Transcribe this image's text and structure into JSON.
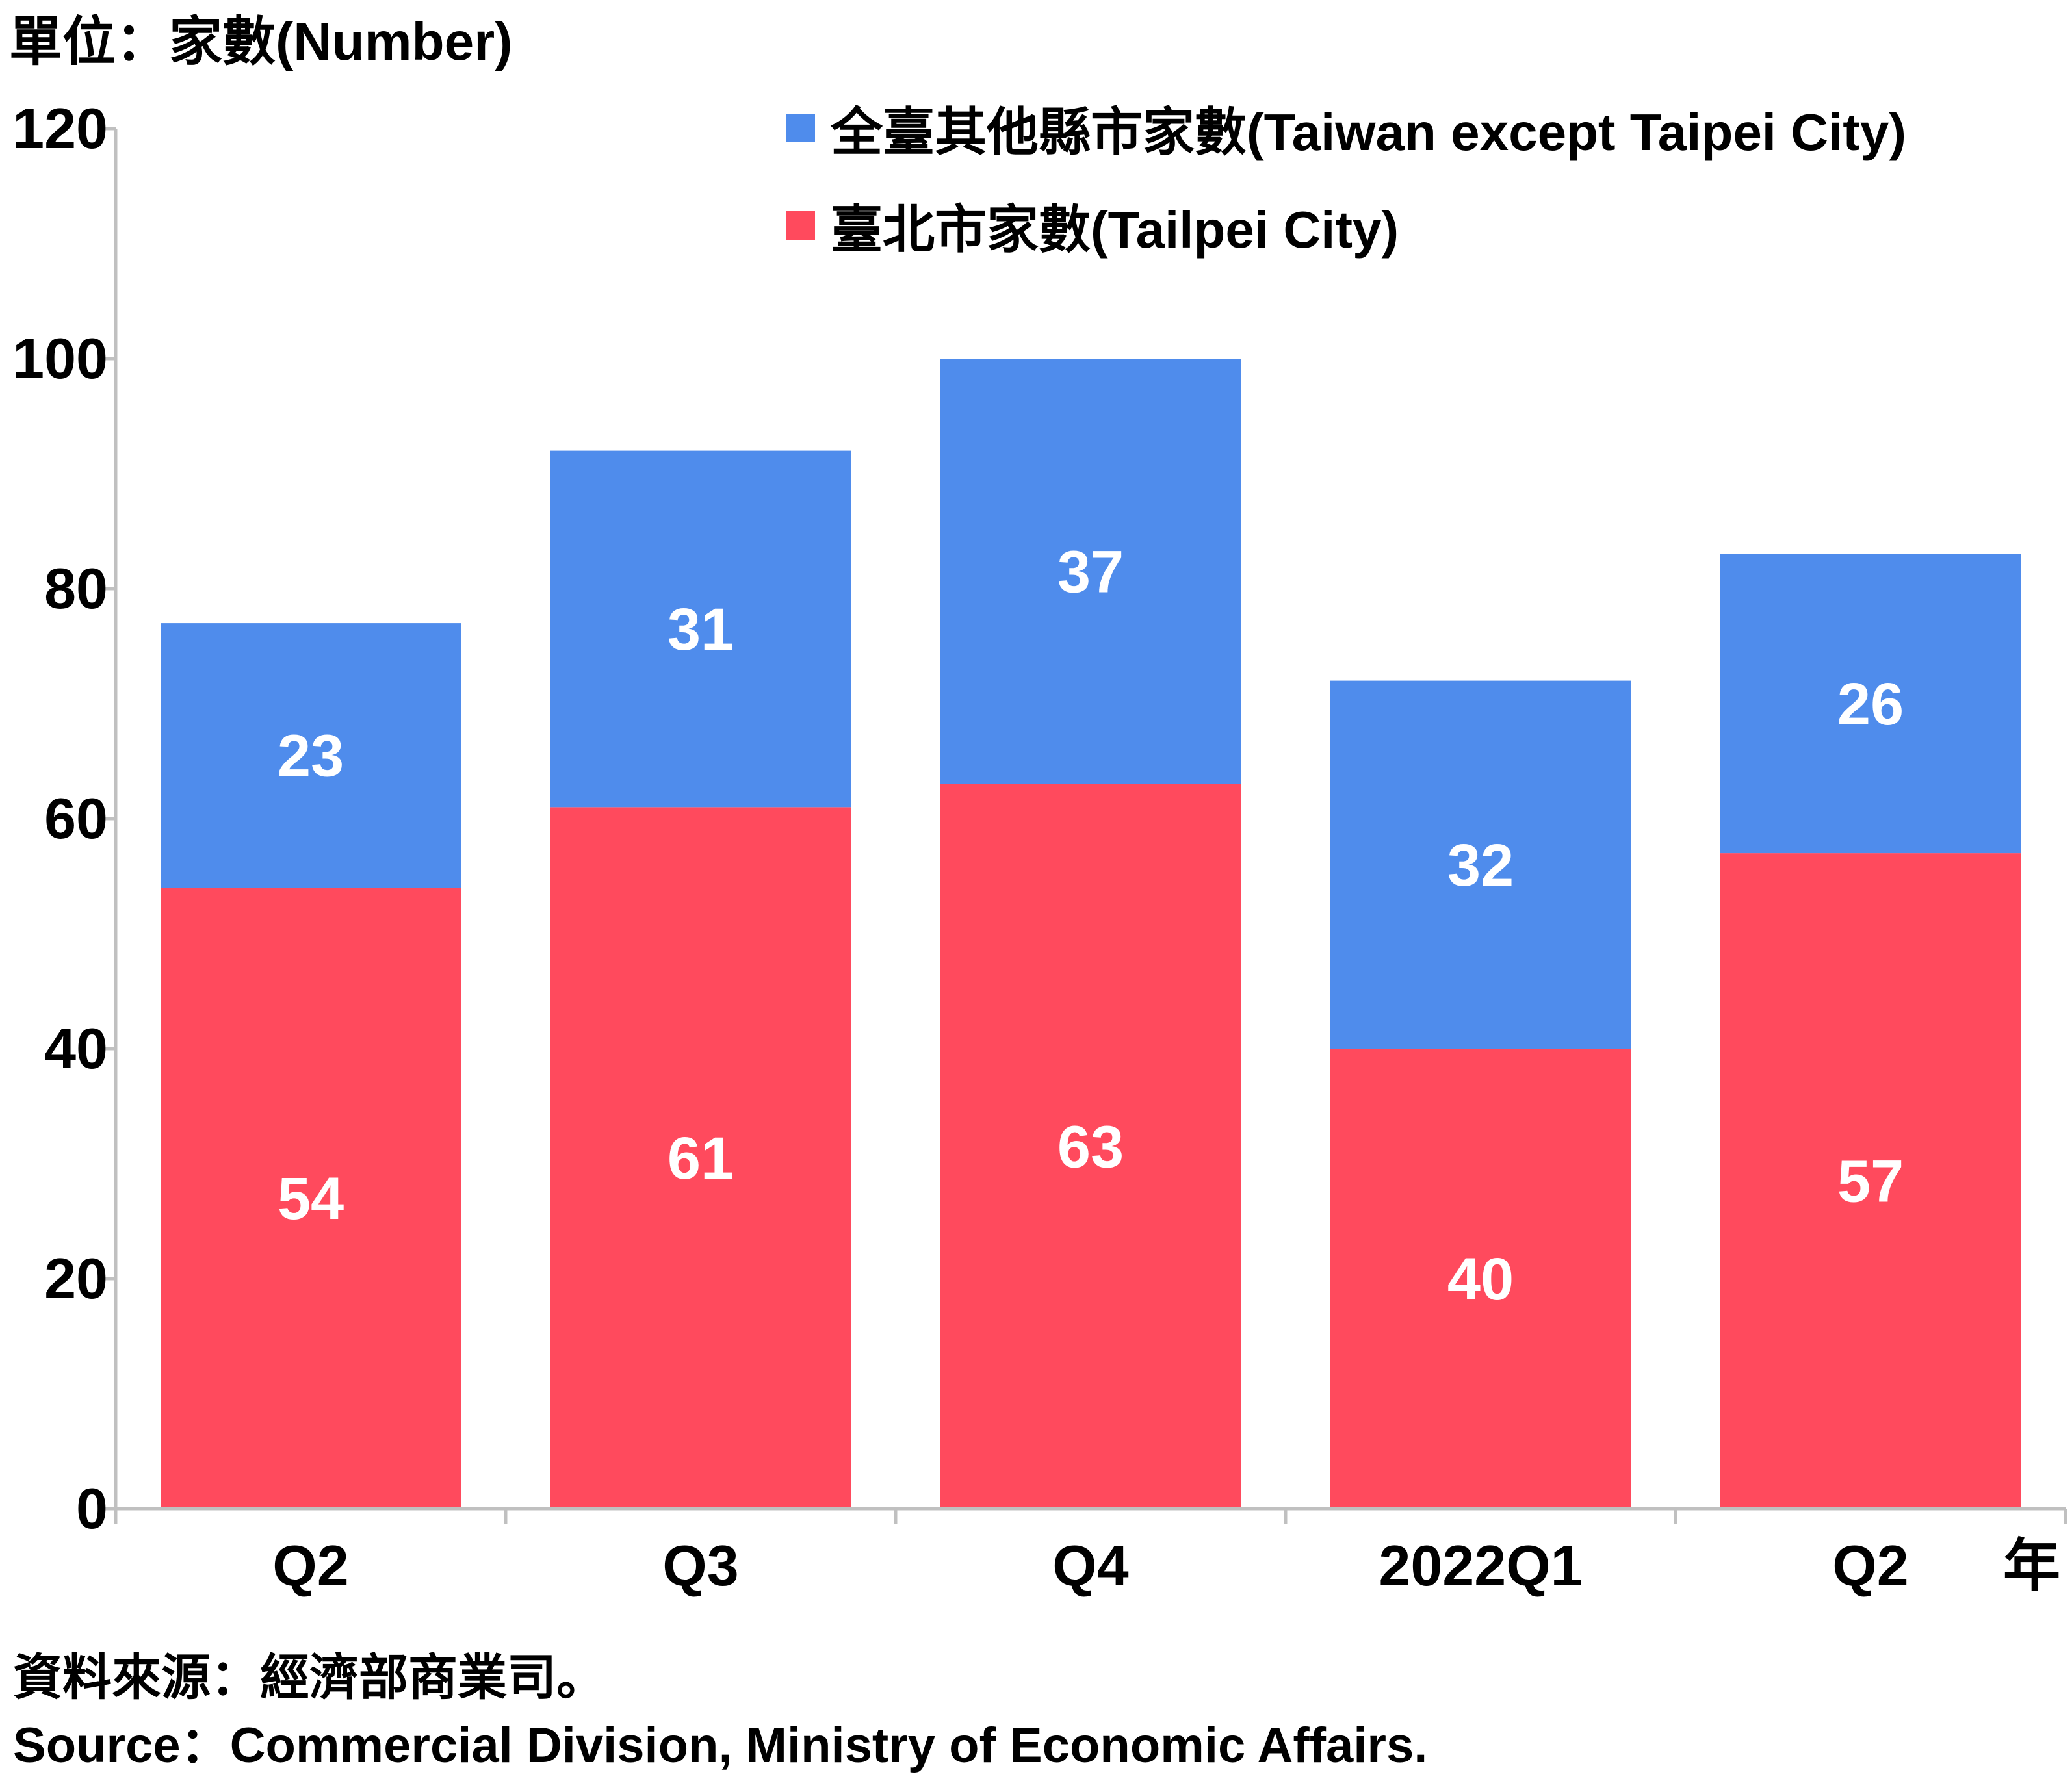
{
  "unit_label": "單位：家數(Number)",
  "year_suffix": "年",
  "source_zh": "資料來源：經濟部商業司。",
  "source_en": "Source：Commercial Division, Ministry of Economic Affairs.",
  "colors": {
    "taipei": "#ff4a5d",
    "other": "#4f8cec",
    "axis": "#c0c0c0",
    "label_inside": "#ffffff",
    "text": "#000000"
  },
  "chart_data": {
    "type": "bar",
    "stacked": true,
    "categories": [
      "Q2",
      "Q3",
      "Q4",
      "2022Q1",
      "Q2"
    ],
    "series": [
      {
        "name": "臺北市家數(Tailpei City)",
        "values": [
          54,
          61,
          63,
          40,
          57
        ]
      },
      {
        "name": "全臺其他縣市家數(Taiwan except Taipei City)",
        "values": [
          23,
          31,
          37,
          32,
          26
        ]
      }
    ],
    "ylim": [
      0,
      120
    ],
    "yticks": [
      0,
      20,
      40,
      60,
      80,
      100,
      120
    ],
    "grid": false,
    "legend_position": "top-right"
  }
}
